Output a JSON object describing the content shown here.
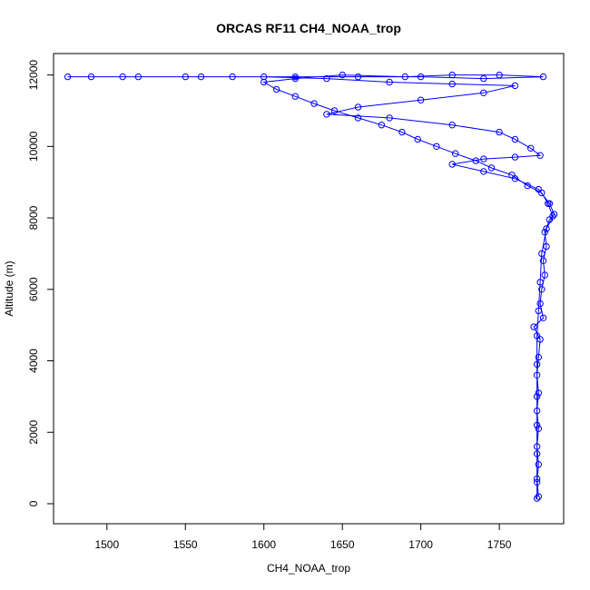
{
  "chart_data": {
    "type": "scatter",
    "title": "ORCAS RF11 CH4_NOAA_trop",
    "xlabel": "CH4_NOAA_trop",
    "ylabel": "Altitude (m)",
    "xlim": [
      1466,
      1791
    ],
    "ylim": [
      -560,
      12600
    ],
    "x_ticks": [
      1500,
      1550,
      1600,
      1650,
      1700,
      1750
    ],
    "y_ticks": [
      0,
      2000,
      4000,
      6000,
      8000,
      10000,
      12000
    ],
    "grid": false,
    "legend": "none",
    "marker": "open-circle",
    "line": true,
    "series": [
      {
        "color": "#0000ff",
        "points": [
          [
            1774,
            150
          ],
          [
            1774,
            600
          ],
          [
            1775,
            1100
          ],
          [
            1774,
            1600
          ],
          [
            1775,
            2100
          ],
          [
            1774,
            2600
          ],
          [
            1775,
            3100
          ],
          [
            1774,
            3600
          ],
          [
            1775,
            4100
          ],
          [
            1776,
            4600
          ],
          [
            1772,
            4950
          ],
          [
            1778,
            5200
          ],
          [
            1776,
            5600
          ],
          [
            1777,
            6000
          ],
          [
            1779,
            6400
          ],
          [
            1778,
            6800
          ],
          [
            1780,
            7200
          ],
          [
            1779,
            7600
          ],
          [
            1782,
            7950
          ],
          [
            1784,
            8050
          ],
          [
            1781,
            8400
          ],
          [
            1777,
            8700
          ],
          [
            1768,
            8900
          ],
          [
            1758,
            9200
          ],
          [
            1745,
            9400
          ],
          [
            1735,
            9600
          ],
          [
            1722,
            9800
          ],
          [
            1710,
            10000
          ],
          [
            1698,
            10200
          ],
          [
            1688,
            10400
          ],
          [
            1675,
            10600
          ],
          [
            1660,
            10800
          ],
          [
            1645,
            11000
          ],
          [
            1632,
            11200
          ],
          [
            1620,
            11400
          ],
          [
            1608,
            11600
          ],
          [
            1600,
            11800
          ],
          [
            1620,
            11900
          ],
          [
            1650,
            12000
          ],
          [
            1690,
            11950
          ],
          [
            1720,
            12000
          ],
          [
            1750,
            12000
          ],
          [
            1778,
            11950
          ],
          [
            1740,
            11900
          ],
          [
            1700,
            11950
          ],
          [
            1660,
            11950
          ],
          [
            1620,
            11950
          ],
          [
            1580,
            11950
          ],
          [
            1550,
            11950
          ],
          [
            1520,
            11950
          ],
          [
            1490,
            11950
          ],
          [
            1475,
            11950
          ],
          [
            1510,
            11950
          ],
          [
            1560,
            11950
          ],
          [
            1600,
            11950
          ],
          [
            1640,
            11900
          ],
          [
            1680,
            11800
          ],
          [
            1720,
            11750
          ],
          [
            1760,
            11700
          ],
          [
            1740,
            11500
          ],
          [
            1700,
            11300
          ],
          [
            1660,
            11100
          ],
          [
            1640,
            10900
          ],
          [
            1680,
            10800
          ],
          [
            1720,
            10600
          ],
          [
            1750,
            10400
          ],
          [
            1760,
            10200
          ],
          [
            1770,
            9950
          ],
          [
            1776,
            9750
          ],
          [
            1760,
            9700
          ],
          [
            1740,
            9650
          ],
          [
            1720,
            9500
          ],
          [
            1740,
            9300
          ],
          [
            1760,
            9100
          ],
          [
            1775,
            8800
          ],
          [
            1782,
            8400
          ],
          [
            1785,
            8100
          ],
          [
            1780,
            7700
          ],
          [
            1777,
            7000
          ],
          [
            1776,
            6200
          ],
          [
            1775,
            5400
          ],
          [
            1774,
            4700
          ],
          [
            1774,
            3900
          ],
          [
            1774,
            3000
          ],
          [
            1774,
            2200
          ],
          [
            1774,
            1400
          ],
          [
            1774,
            700
          ],
          [
            1775,
            200
          ]
        ]
      }
    ]
  }
}
